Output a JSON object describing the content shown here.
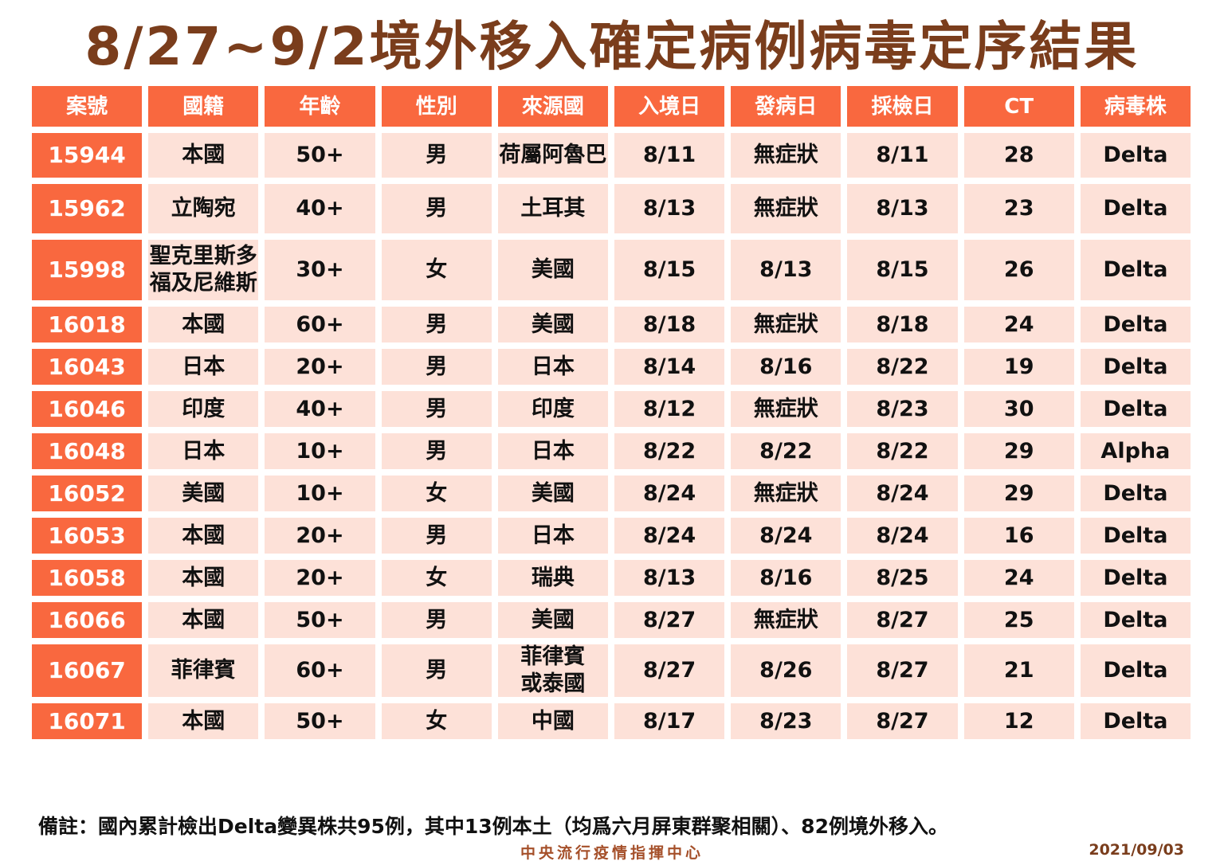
{
  "title": "8/27~9/2境外移入確定病例病毒定序結果",
  "colors": {
    "header_bg": "#f9683f",
    "row_bg": "#fde1d8",
    "title_color": "#7a3d1c"
  },
  "table": {
    "headers": [
      "案號",
      "國籍",
      "年齡",
      "性別",
      "來源國",
      "入境日",
      "發病日",
      "採檢日",
      "CT",
      "病毒株"
    ],
    "rows": [
      [
        "15944",
        "本國",
        "50+",
        "男",
        "荷屬阿魯巴",
        "8/11",
        "無症狀",
        "8/11",
        "28",
        "Delta"
      ],
      [
        "15962",
        "立陶宛",
        "40+",
        "男",
        "土耳其",
        "8/13",
        "無症狀",
        "8/13",
        "23",
        "Delta"
      ],
      [
        "15998",
        "聖克里斯多\n福及尼維斯",
        "30+",
        "女",
        "美國",
        "8/15",
        "8/13",
        "8/15",
        "26",
        "Delta"
      ],
      [
        "16018",
        "本國",
        "60+",
        "男",
        "美國",
        "8/18",
        "無症狀",
        "8/18",
        "24",
        "Delta"
      ],
      [
        "16043",
        "日本",
        "20+",
        "男",
        "日本",
        "8/14",
        "8/16",
        "8/22",
        "19",
        "Delta"
      ],
      [
        "16046",
        "印度",
        "40+",
        "男",
        "印度",
        "8/12",
        "無症狀",
        "8/23",
        "30",
        "Delta"
      ],
      [
        "16048",
        "日本",
        "10+",
        "男",
        "日本",
        "8/22",
        "8/22",
        "8/22",
        "29",
        "Alpha"
      ],
      [
        "16052",
        "美國",
        "10+",
        "女",
        "美國",
        "8/24",
        "無症狀",
        "8/24",
        "29",
        "Delta"
      ],
      [
        "16053",
        "本國",
        "20+",
        "男",
        "日本",
        "8/24",
        "8/24",
        "8/24",
        "16",
        "Delta"
      ],
      [
        "16058",
        "本國",
        "20+",
        "女",
        "瑞典",
        "8/13",
        "8/16",
        "8/25",
        "24",
        "Delta"
      ],
      [
        "16066",
        "本國",
        "50+",
        "男",
        "美國",
        "8/27",
        "無症狀",
        "8/27",
        "25",
        "Delta"
      ],
      [
        "16067",
        "菲律賓",
        "60+",
        "男",
        "菲律賓\n或泰國",
        "8/27",
        "8/26",
        "8/27",
        "21",
        "Delta"
      ],
      [
        "16071",
        "本國",
        "50+",
        "女",
        "中國",
        "8/17",
        "8/23",
        "8/27",
        "12",
        "Delta"
      ]
    ]
  },
  "note": "備註：國內累計檢出Delta變異株共95例，其中13例本土（均爲六月屏東群聚相關）、82例境外移入。",
  "footer": {
    "org": "中央流行疫情指揮中心",
    "date": "2021/09/03"
  }
}
